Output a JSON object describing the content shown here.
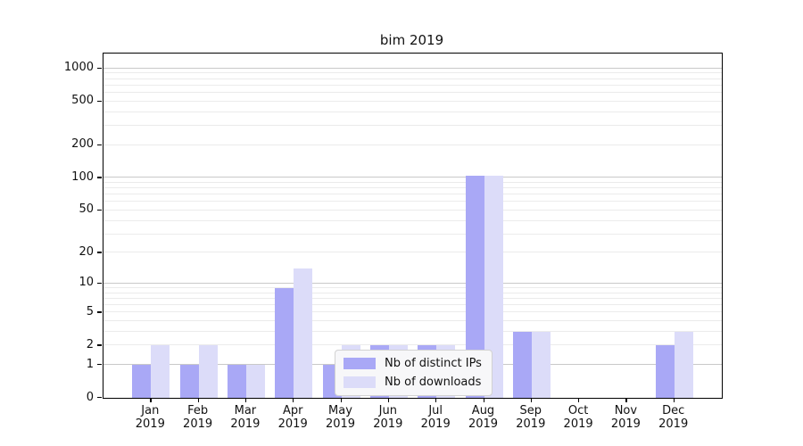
{
  "page": {
    "background": "#ffffff"
  },
  "chart_data": {
    "type": "bar",
    "title": "bim 2019",
    "year": "2019",
    "categories": [
      "Jan",
      "Feb",
      "Mar",
      "Apr",
      "May",
      "Jun",
      "Jul",
      "Aug",
      "Sep",
      "Oct",
      "Nov",
      "Dec"
    ],
    "series": [
      {
        "name": "Nb of distinct IPs",
        "color": "#a9a8f6",
        "values": [
          1,
          1,
          1,
          9,
          1,
          2,
          2,
          105,
          3,
          0,
          0,
          2
        ]
      },
      {
        "name": "Nb of downloads",
        "color": "#dcdcf9",
        "values": [
          2,
          2,
          1,
          14,
          2,
          2,
          2,
          105,
          3,
          0,
          0,
          3
        ]
      }
    ],
    "y_axis": {
      "scale": "log1p",
      "ticks": [
        0,
        1,
        2,
        5,
        10,
        20,
        50,
        100,
        200,
        500,
        1000
      ],
      "major_gridlines": [
        1,
        10,
        100,
        1000
      ],
      "minor_gridlines": [
        2,
        3,
        4,
        5,
        6,
        7,
        8,
        9,
        20,
        30,
        40,
        50,
        60,
        70,
        80,
        90,
        200,
        300,
        400,
        500,
        600,
        700,
        800,
        900
      ],
      "top_value": 1370
    },
    "x_axis": {
      "label_line2": "2019"
    },
    "legend": {
      "position": "lower center"
    },
    "colors": {
      "major_grid": "#c9c9c9",
      "minor_grid": "#ebebeb",
      "spine": "#000000",
      "background": "#ffffff"
    }
  }
}
